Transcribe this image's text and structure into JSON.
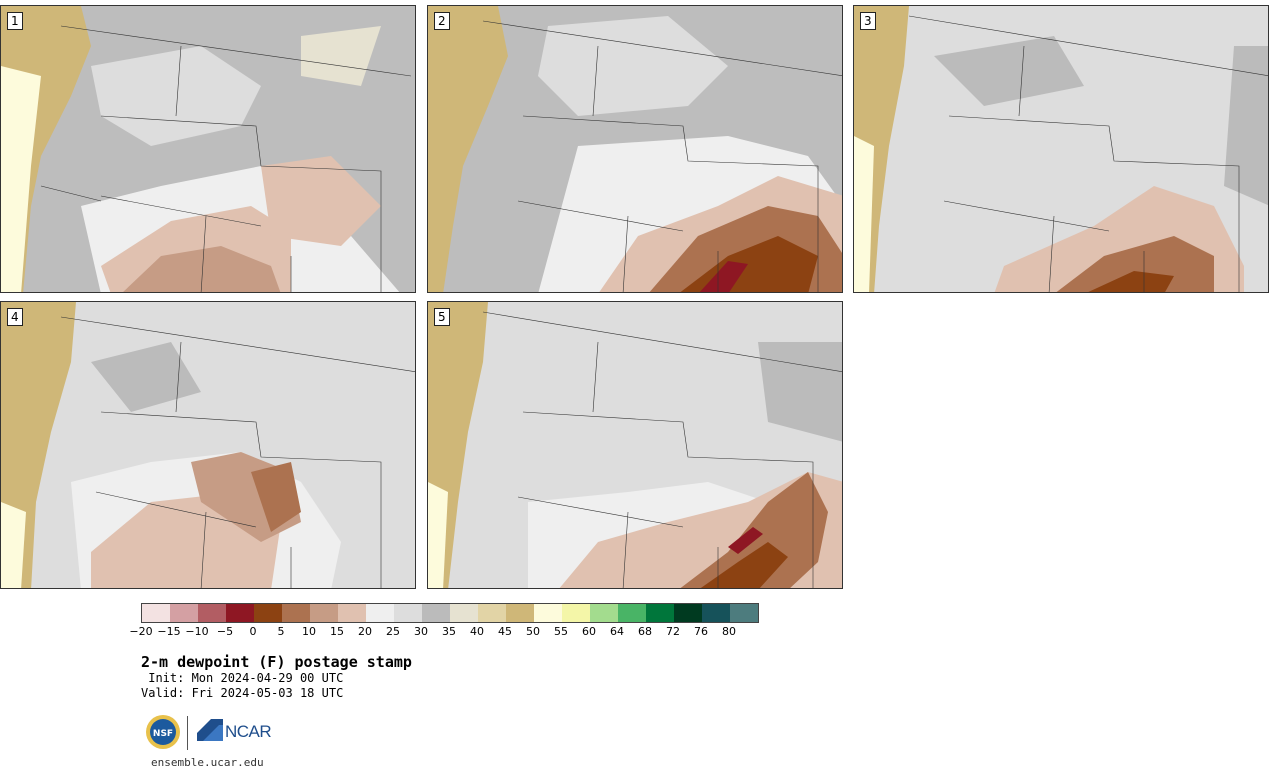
{
  "panels": [
    {
      "label": "1"
    },
    {
      "label": "2"
    },
    {
      "label": "3"
    },
    {
      "label": "4"
    },
    {
      "label": "5"
    }
  ],
  "colorbar": {
    "colors": [
      "#f3e2e2",
      "#d4a0a3",
      "#b25d63",
      "#8e1723",
      "#8c4212",
      "#ac7250",
      "#c69c85",
      "#e0c1b0",
      "#efefef",
      "#dddddd",
      "#bbbbbb",
      "#e6e2d1",
      "#e2d4a6",
      "#cfb778",
      "#fdfbdc",
      "#f4f6a8",
      "#a3dc8e",
      "#49b466",
      "#00763b",
      "#003a20",
      "#16525a",
      "#4d7c7e"
    ],
    "tick_labels": [
      "−20",
      "−15",
      "−10",
      "−5",
      "0",
      "5",
      "10",
      "15",
      "20",
      "25",
      "30",
      "35",
      "40",
      "45",
      "50",
      "55",
      "60",
      "64",
      "68",
      "72",
      "76",
      "80"
    ]
  },
  "title": "2-m dewpoint (F) postage stamp",
  "init": " Init: Mon 2024-04-29 00 UTC",
  "valid": "Valid: Fri 2024-05-03 18 UTC",
  "logo": {
    "nsf": "NSF",
    "ncar": "NCAR"
  },
  "url": "ensemble.ucar.edu"
}
